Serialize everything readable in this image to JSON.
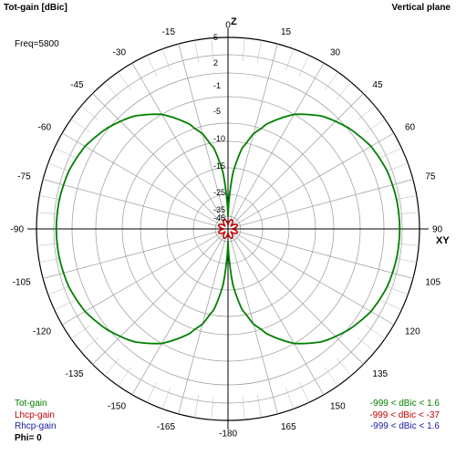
{
  "header": {
    "title": "Tot-gain [dBic]",
    "plane": "Vertical plane",
    "freq": "Freq=5800"
  },
  "axis_labels": {
    "top": "Z",
    "right": "XY"
  },
  "legend": [
    {
      "name": "Tot-gain",
      "range": "-999 < dBic < 1.6",
      "color": "#008000"
    },
    {
      "name": "Lhcp-gain",
      "range": "-999 < dBic < -37",
      "color": "#c00000"
    },
    {
      "name": "Rhcp-gain",
      "range": "-999 < dBic < 1.6",
      "color": "#1a1aa0"
    }
  ],
  "phi": "Phi= 0",
  "chart_data": {
    "type": "polar",
    "angle_ticks": [
      0,
      15,
      30,
      45,
      60,
      75,
      90,
      105,
      120,
      135,
      150,
      165,
      -180,
      -165,
      -150,
      -135,
      -120,
      -105,
      -90,
      -75,
      -60,
      -45,
      -30,
      -15
    ],
    "radial_ticks": [
      5,
      2,
      -1,
      -5,
      -10,
      -15,
      -25,
      -35,
      -45
    ],
    "series": [
      {
        "name": "Tot-gain",
        "color": "#008000",
        "angles_deg": [
          0,
          5,
          10,
          15,
          20,
          30,
          40,
          50,
          60,
          70,
          80,
          90,
          100,
          110,
          120,
          130,
          140,
          150,
          160,
          165,
          170,
          175,
          180
        ],
        "gain_dbic": [
          -45,
          -27,
          -17,
          -12,
          -9,
          -5,
          -2.5,
          -0.8,
          0.5,
          1.2,
          1.5,
          1.6,
          1.5,
          1.2,
          0.5,
          -0.8,
          -2.5,
          -5,
          -9,
          -12,
          -17,
          -27,
          -45
        ]
      },
      {
        "name": "Lhcp-gain",
        "color": "#c00000",
        "petals": 8,
        "max_dbic": -37
      }
    ]
  }
}
